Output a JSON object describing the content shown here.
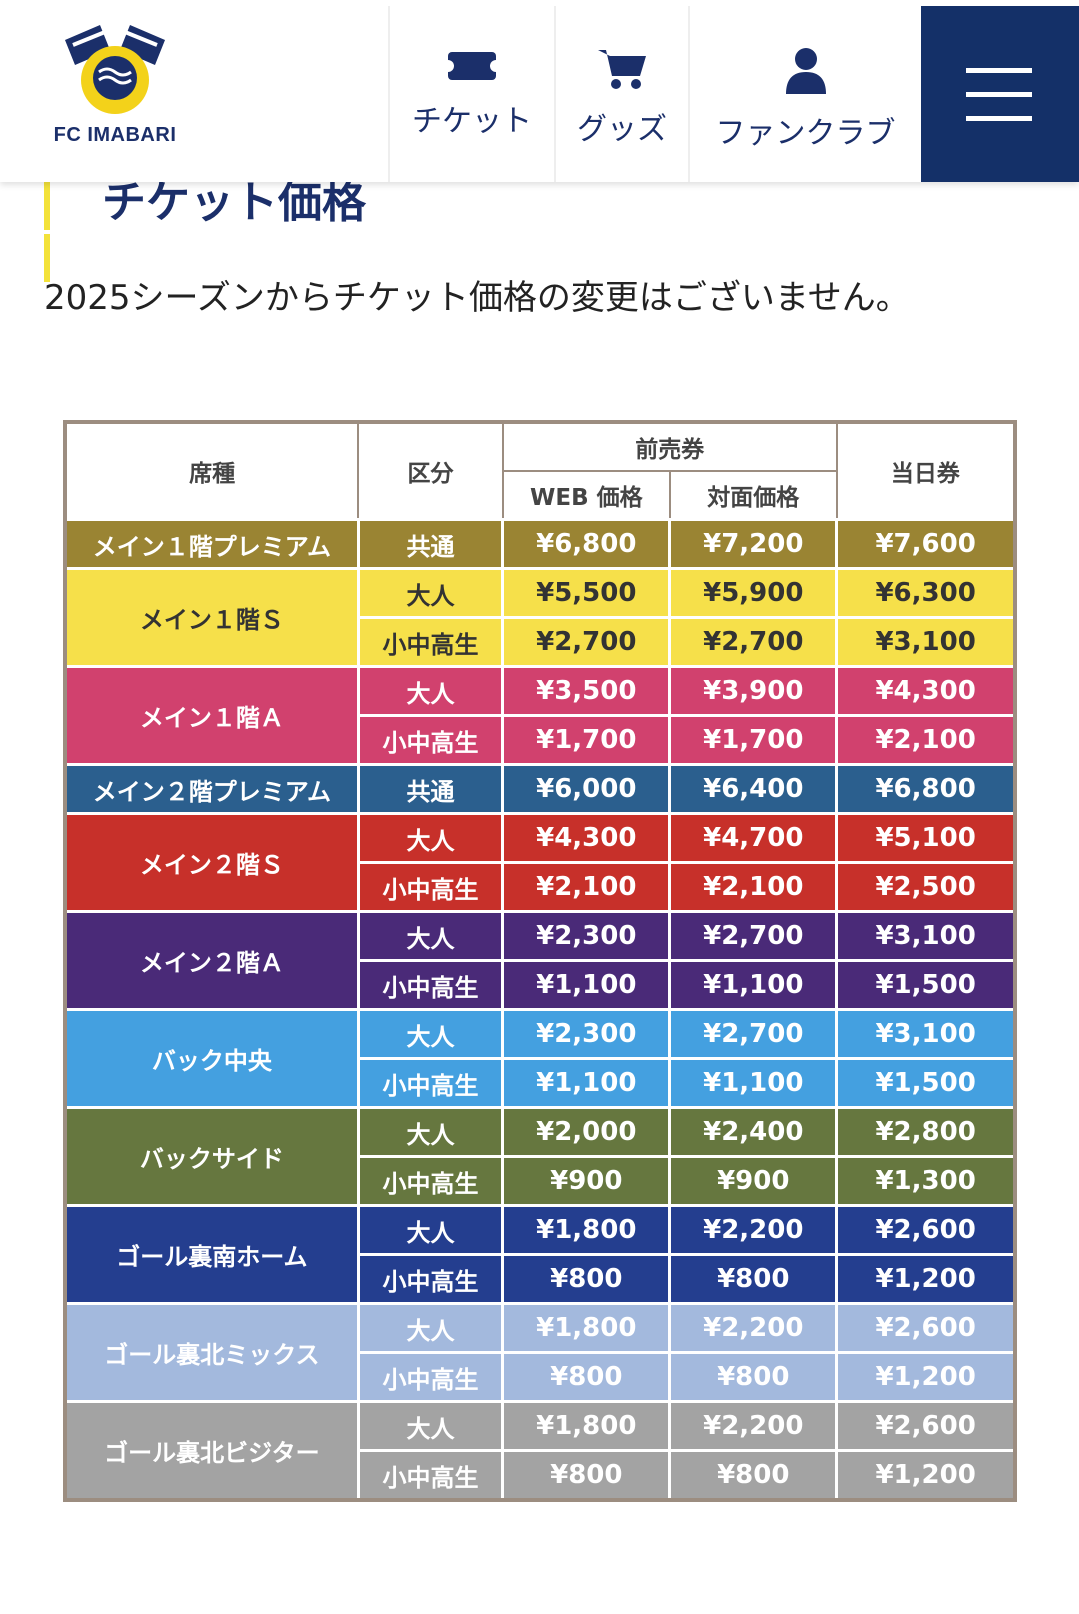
{
  "header": {
    "logo_text": "FC IMABARI",
    "nav": [
      "チケット",
      "グッズ",
      "ファンクラブ"
    ]
  },
  "section": {
    "title": "チケット価格",
    "note": "2025シーズンからチケット価格の変更はございません。"
  },
  "table": {
    "headers": {
      "seat": "席種",
      "category": "区分",
      "advance": "前売券",
      "web": "WEB 価格",
      "counter": "対面価格",
      "day": "当日券"
    },
    "rows": [
      {
        "seat": "メイン１階プレミアム",
        "color": "#9a8433",
        "text_color": "#ffffff",
        "tiers": [
          {
            "category": "共通",
            "web": "¥6,800",
            "counter": "¥7,200",
            "day": "¥7,600"
          }
        ]
      },
      {
        "seat": "メイン１階Ｓ",
        "color": "#f6e04a",
        "text_color": "#333333",
        "tiers": [
          {
            "category": "大人",
            "web": "¥5,500",
            "counter": "¥5,900",
            "day": "¥6,300"
          },
          {
            "category": "小中高生",
            "web": "¥2,700",
            "counter": "¥2,700",
            "day": "¥3,100"
          }
        ]
      },
      {
        "seat": "メイン１階Ａ",
        "color": "#d1416e",
        "text_color": "#ffffff",
        "tiers": [
          {
            "category": "大人",
            "web": "¥3,500",
            "counter": "¥3,900",
            "day": "¥4,300"
          },
          {
            "category": "小中高生",
            "web": "¥1,700",
            "counter": "¥1,700",
            "day": "¥2,100"
          }
        ]
      },
      {
        "seat": "メイン２階プレミアム",
        "color": "#2b5f8e",
        "text_color": "#ffffff",
        "tiers": [
          {
            "category": "共通",
            "web": "¥6,000",
            "counter": "¥6,400",
            "day": "¥6,800"
          }
        ]
      },
      {
        "seat": "メイン２階Ｓ",
        "color": "#c7302a",
        "text_color": "#ffffff",
        "tiers": [
          {
            "category": "大人",
            "web": "¥4,300",
            "counter": "¥4,700",
            "day": "¥5,100"
          },
          {
            "category": "小中高生",
            "web": "¥2,100",
            "counter": "¥2,100",
            "day": "¥2,500"
          }
        ]
      },
      {
        "seat": "メイン２階Ａ",
        "color": "#4a2a78",
        "text_color": "#ffffff",
        "tiers": [
          {
            "category": "大人",
            "web": "¥2,300",
            "counter": "¥2,700",
            "day": "¥3,100"
          },
          {
            "category": "小中高生",
            "web": "¥1,100",
            "counter": "¥1,100",
            "day": "¥1,500"
          }
        ]
      },
      {
        "seat": "バック中央",
        "color": "#44a0e0",
        "text_color": "#ffffff",
        "tiers": [
          {
            "category": "大人",
            "web": "¥2,300",
            "counter": "¥2,700",
            "day": "¥3,100"
          },
          {
            "category": "小中高生",
            "web": "¥1,100",
            "counter": "¥1,100",
            "day": "¥1,500"
          }
        ]
      },
      {
        "seat": "バックサイド",
        "color": "#66773f",
        "text_color": "#ffffff",
        "tiers": [
          {
            "category": "大人",
            "web": "¥2,000",
            "counter": "¥2,400",
            "day": "¥2,800"
          },
          {
            "category": "小中高生",
            "web": "¥900",
            "counter": "¥900",
            "day": "¥1,300"
          }
        ]
      },
      {
        "seat": "ゴール裏南ホーム",
        "color": "#243e8f",
        "text_color": "#ffffff",
        "tiers": [
          {
            "category": "大人",
            "web": "¥1,800",
            "counter": "¥2,200",
            "day": "¥2,600"
          },
          {
            "category": "小中高生",
            "web": "¥800",
            "counter": "¥800",
            "day": "¥1,200"
          }
        ]
      },
      {
        "seat": "ゴール裏北ミックス",
        "color": "#a3b9dd",
        "text_color": "#ffffff",
        "tiers": [
          {
            "category": "大人",
            "web": "¥1,800",
            "counter": "¥2,200",
            "day": "¥2,600"
          },
          {
            "category": "小中高生",
            "web": "¥800",
            "counter": "¥800",
            "day": "¥1,200"
          }
        ]
      },
      {
        "seat": "ゴール裏北ビジター",
        "color": "#a3a3a3",
        "text_color": "#ffffff",
        "tiers": [
          {
            "category": "大人",
            "web": "¥1,800",
            "counter": "¥2,200",
            "day": "¥2,600"
          },
          {
            "category": "小中高生",
            "web": "¥800",
            "counter": "¥800",
            "day": "¥1,200"
          }
        ]
      }
    ]
  }
}
